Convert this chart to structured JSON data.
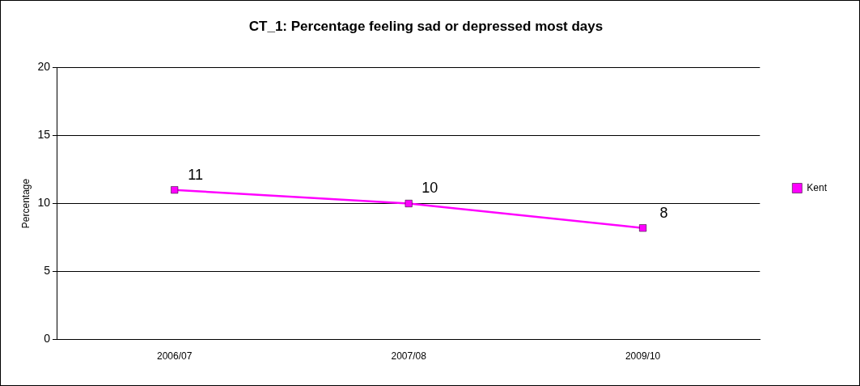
{
  "chart_data": {
    "type": "line",
    "title": "CT_1: Percentage feeling sad or depressed most days",
    "ylabel": "Percentage",
    "categories": [
      "2006/07",
      "2007/08",
      "2009/10"
    ],
    "series": [
      {
        "name": "Kent",
        "color": "#ff00ff",
        "values": [
          11,
          10,
          8.2
        ],
        "value_labels": [
          "11",
          "10",
          "8"
        ]
      }
    ],
    "ylim": [
      0,
      20
    ],
    "yticks": [
      0,
      5,
      10,
      15,
      20
    ],
    "grid": "y",
    "legend": "right",
    "marker": "square",
    "line_style": "solid"
  }
}
